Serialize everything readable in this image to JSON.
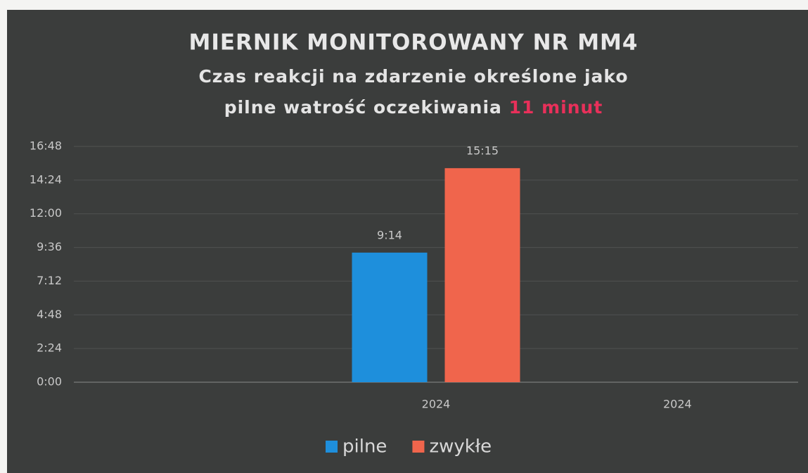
{
  "chart_data": {
    "type": "bar",
    "title": "MIERNIK MONITOROWANY NR MM4",
    "subtitle": [
      "Czas reakcji na zdarzenie określone jako",
      "pilne watrość oczekiwania"
    ],
    "subtitle_highlight": "11 minut",
    "highlight_color": "#e8305a",
    "categories": [
      null,
      "2024",
      "2024"
    ],
    "series": [
      {
        "name": "pilne",
        "color": "#1e8fdc",
        "values": [
          null,
          9.2333,
          null
        ],
        "value_labels": [
          null,
          "9:14",
          null
        ]
      },
      {
        "name": "zwykłe",
        "color": "#f0654c",
        "values": [
          null,
          15.25,
          null
        ],
        "value_labels": [
          null,
          "15:15",
          null
        ]
      }
    ],
    "ylim": [
      0,
      16.8
    ],
    "yticks": [
      {
        "value": 0,
        "label": "0:00"
      },
      {
        "value": 2.4,
        "label": "2:24"
      },
      {
        "value": 4.8,
        "label": "4:48"
      },
      {
        "value": 7.2,
        "label": "7:12"
      },
      {
        "value": 9.6,
        "label": "9:36"
      },
      {
        "value": 12,
        "label": "12:00"
      },
      {
        "value": 14.4,
        "label": "14:24"
      },
      {
        "value": 16.8,
        "label": "16:48"
      }
    ],
    "grid": true,
    "legend": "bottom"
  }
}
